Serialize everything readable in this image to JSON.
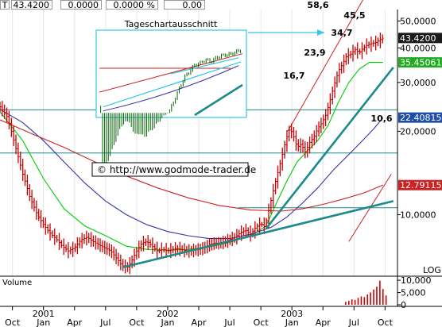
{
  "toolbar": {
    "symbol_letter": "T",
    "last_price": "43.4200",
    "change": "0.0000",
    "change_pct": "0.0000 %",
    "volume": "0.00"
  },
  "colors": {
    "price_bars": "#cc0000",
    "inset_bars": "#006600",
    "ma_fast": "#00cc00",
    "ma_mid": "#3333aa",
    "ma_slow": "#cc2222",
    "trendline": "#1a8a8a",
    "hlines": "#1a8a8a",
    "channel": "#cc2222",
    "arrow": "#33c8e6",
    "volume_bars": "#cc0000"
  },
  "chart_data": {
    "type": "line",
    "scale": "log",
    "ylim": [
      6,
      55
    ],
    "price_ticks": [
      "50,0000",
      "40,0000",
      "30,0000",
      "20,0000",
      "10,0000"
    ],
    "price_tick_values": [
      50,
      40,
      30,
      20,
      10
    ],
    "axis_unit_label": "LOG",
    "x_ticks": [
      {
        "label": "Oct",
        "t": 0
      },
      {
        "label": "Jan",
        "t": 3
      },
      {
        "label": "Apr",
        "t": 6
      },
      {
        "label": "Jul",
        "t": 9
      },
      {
        "label": "Oct",
        "t": 12
      },
      {
        "label": "Jan",
        "t": 15
      },
      {
        "label": "Apr",
        "t": 18
      },
      {
        "label": "Jul",
        "t": 21
      },
      {
        "label": "Oct",
        "t": 24
      },
      {
        "label": "Jan",
        "t": 27
      },
      {
        "label": "Apr",
        "t": 30
      },
      {
        "label": "Jul",
        "t": 33
      },
      {
        "label": "Oct",
        "t": 36
      }
    ],
    "year_labels": [
      {
        "label": "2001",
        "t": 3
      },
      {
        "label": "2002",
        "t": 15
      },
      {
        "label": "2003",
        "t": 27
      }
    ],
    "xlim": [
      -1.2,
      37.2
    ],
    "price_path": [
      [
        -1.2,
        24.5
      ],
      [
        -0.5,
        22.5
      ],
      [
        0.3,
        17.5
      ],
      [
        1,
        14
      ],
      [
        1.7,
        11.5
      ],
      [
        2.4,
        10
      ],
      [
        3,
        9.2
      ],
      [
        3.6,
        8.6
      ],
      [
        4.2,
        8.2
      ],
      [
        4.8,
        7.7
      ],
      [
        5.4,
        7.4
      ],
      [
        6,
        7.6
      ],
      [
        6.6,
        8.1
      ],
      [
        7.2,
        8.3
      ],
      [
        7.8,
        8.0
      ],
      [
        8.3,
        7.8
      ],
      [
        8.9,
        7.6
      ],
      [
        9.5,
        7.4
      ],
      [
        10,
        7.0
      ],
      [
        10.6,
        6.55
      ],
      [
        11.1,
        6.45
      ],
      [
        11.5,
        6.8
      ],
      [
        12,
        7.4
      ],
      [
        12.5,
        7.9
      ],
      [
        13,
        8.0
      ],
      [
        13.5,
        7.7
      ],
      [
        14,
        7.4
      ],
      [
        14.5,
        7.5
      ],
      [
        15,
        7.4
      ],
      [
        15.5,
        7.5
      ],
      [
        16,
        7.55
      ],
      [
        16.5,
        7.45
      ],
      [
        17,
        7.4
      ],
      [
        17.5,
        7.45
      ],
      [
        18,
        7.5
      ],
      [
        18.5,
        7.6
      ],
      [
        19,
        7.8
      ],
      [
        19.5,
        7.9
      ],
      [
        20,
        7.9
      ],
      [
        20.5,
        8.0
      ],
      [
        21,
        8.15
      ],
      [
        21.5,
        8.3
      ],
      [
        22,
        8.6
      ],
      [
        22.5,
        8.8
      ],
      [
        23,
        8.5
      ],
      [
        23.5,
        9.0
      ],
      [
        24,
        9.3
      ],
      [
        24.4,
        9.0
      ],
      [
        24.8,
        10.5
      ],
      [
        25.2,
        12.2
      ],
      [
        25.6,
        14.0
      ],
      [
        26,
        16.0
      ],
      [
        26.4,
        18.5
      ],
      [
        26.8,
        20.5
      ],
      [
        27.1,
        19.5
      ],
      [
        27.5,
        17.5
      ],
      [
        27.9,
        18.0
      ],
      [
        28.3,
        16.8
      ],
      [
        28.7,
        18.2
      ],
      [
        29.1,
        19.0
      ],
      [
        29.5,
        20.5
      ],
      [
        29.9,
        21.5
      ],
      [
        30.3,
        23.0
      ],
      [
        30.7,
        26.0
      ],
      [
        31.1,
        29.5
      ],
      [
        31.5,
        33.0
      ],
      [
        31.9,
        35.0
      ],
      [
        32.3,
        37.5
      ],
      [
        32.7,
        38.0
      ],
      [
        33.1,
        39.5
      ],
      [
        33.5,
        38.5
      ],
      [
        33.9,
        40.0
      ],
      [
        34.3,
        41.0
      ],
      [
        34.7,
        41.5
      ],
      [
        35.1,
        41.8
      ],
      [
        35.5,
        42.8
      ],
      [
        35.8,
        43.42
      ]
    ],
    "moving_averages": [
      {
        "key": "fast",
        "points": [
          [
            -1.2,
            23.5
          ],
          [
            1,
            18.5
          ],
          [
            3,
            13.5
          ],
          [
            5,
            10.5
          ],
          [
            7,
            9.1
          ],
          [
            9,
            8.4
          ],
          [
            11,
            7.7
          ],
          [
            13,
            7.5
          ],
          [
            15,
            7.45
          ],
          [
            17,
            7.5
          ],
          [
            19,
            7.65
          ],
          [
            21,
            7.95
          ],
          [
            23,
            8.4
          ],
          [
            24.5,
            9.1
          ],
          [
            25.5,
            11
          ],
          [
            26.5,
            13.2
          ],
          [
            27.5,
            15.5
          ],
          [
            28.5,
            17
          ],
          [
            29.5,
            18.5
          ],
          [
            30.5,
            21
          ],
          [
            31.5,
            25.5
          ],
          [
            32.5,
            30
          ],
          [
            33.5,
            33.5
          ],
          [
            34.5,
            35.5
          ],
          [
            35.8,
            35.45
          ]
        ]
      },
      {
        "key": "mid",
        "points": [
          [
            -1.2,
            24.0
          ],
          [
            1,
            21.5
          ],
          [
            3,
            18.5
          ],
          [
            5,
            15.5
          ],
          [
            7,
            13.0
          ],
          [
            9,
            11.2
          ],
          [
            11,
            10.0
          ],
          [
            13,
            9.2
          ],
          [
            15,
            8.7
          ],
          [
            17,
            8.4
          ],
          [
            19,
            8.2
          ],
          [
            21,
            8.2
          ],
          [
            23,
            8.5
          ],
          [
            25,
            9.0
          ],
          [
            26.5,
            9.8
          ],
          [
            28,
            11
          ],
          [
            29.5,
            12.5
          ],
          [
            31,
            14.5
          ],
          [
            32.5,
            16.5
          ],
          [
            34,
            18.8
          ],
          [
            35,
            20.6
          ],
          [
            35.8,
            22.4
          ]
        ]
      },
      {
        "key": "slow",
        "points": [
          [
            -1.2,
            22.0
          ],
          [
            2,
            19.5
          ],
          [
            5,
            17.5
          ],
          [
            8,
            15.5
          ],
          [
            11,
            13.8
          ],
          [
            14,
            12.5
          ],
          [
            17,
            11.5
          ],
          [
            20,
            10.8
          ],
          [
            23,
            10.4
          ],
          [
            26,
            10.3
          ],
          [
            28,
            10.5
          ],
          [
            30,
            10.9
          ],
          [
            32,
            11.4
          ],
          [
            34,
            12.0
          ],
          [
            35.8,
            12.8
          ]
        ]
      }
    ],
    "value_tags": [
      {
        "label": "43.4200",
        "price": 43.42,
        "bg": "#1a1a1a",
        "fg": "#ffffff"
      },
      {
        "label": "35.45061",
        "price": 35.45,
        "bg": "#22aa22",
        "fg": "#ffffff"
      },
      {
        "label": "22.40815",
        "price": 22.41,
        "bg": "#1f4fa8",
        "fg": "#ffffff"
      },
      {
        "label": "12.79115",
        "price": 12.79,
        "bg": "#cc2222",
        "fg": "#ffffff"
      }
    ],
    "resistance_levels": [
      {
        "label": "58,6",
        "price": 58.6
      },
      {
        "label": "45,5",
        "price": 45.5
      },
      {
        "label": "34,7",
        "price": 34.7
      },
      {
        "label": "23,9",
        "price": 23.9
      },
      {
        "label": "16,7",
        "price": 16.7
      },
      {
        "label": "10,6",
        "price": 10.6
      }
    ],
    "inset_title": "Tageschartausschnitt",
    "copyright": "© http://www.godmode-trader.de",
    "volume": {
      "label": "Volume",
      "ticks": [
        "10,000",
        "5,000",
        "0"
      ],
      "tick_values": [
        10000,
        5000,
        0
      ],
      "max": 11000,
      "bars": [
        [
          32.2,
          1200
        ],
        [
          32.5,
          1600
        ],
        [
          32.8,
          2200
        ],
        [
          33.1,
          2000
        ],
        [
          33.4,
          2800
        ],
        [
          33.7,
          3400
        ],
        [
          34,
          3100
        ],
        [
          34.3,
          4200
        ],
        [
          34.6,
          5000
        ],
        [
          34.9,
          6200
        ],
        [
          35.2,
          7400
        ],
        [
          35.5,
          9800
        ],
        [
          35.8,
          6400
        ],
        [
          36.1,
          3800
        ]
      ]
    }
  }
}
